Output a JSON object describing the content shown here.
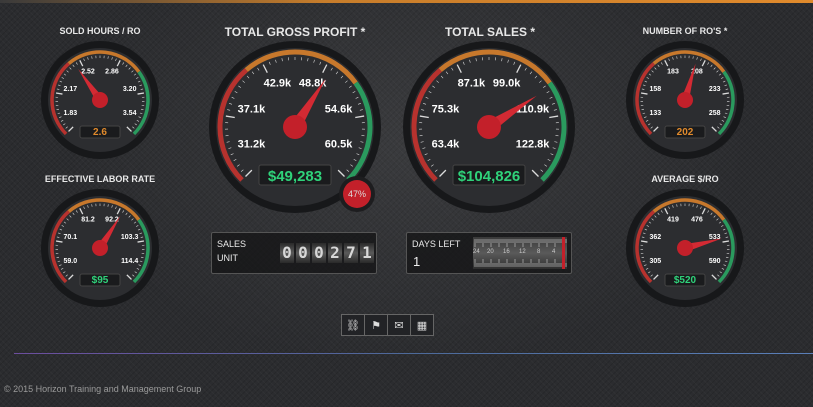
{
  "gauges": [
    {
      "id": "sold-hours",
      "title": "SOLD HOURS / RO",
      "ticks": [
        "1.83",
        "2.17",
        "2.52",
        "2.86",
        "3.20",
        "3.54"
      ],
      "value": "2.6",
      "value_color": "#e08a2c",
      "needle_frac": 0.37
    },
    {
      "id": "gross-profit",
      "title": "TOTAL GROSS PROFIT *",
      "ticks": [
        "31.2k",
        "37.1k",
        "42.9k",
        "48.8k",
        "54.6k",
        "60.5k"
      ],
      "value": "$49,283",
      "value_color": "#2fd27a",
      "needle_frac": 0.62
    },
    {
      "id": "total-sales",
      "title": "TOTAL SALES *",
      "ticks": [
        "63.4k",
        "75.3k",
        "87.1k",
        "99.0k",
        "110.9k",
        "122.8k"
      ],
      "value": "$104,826",
      "value_color": "#2fd27a",
      "needle_frac": 0.71
    },
    {
      "id": "number-ros",
      "title": "NUMBER OF RO'S *",
      "ticks": [
        "133",
        "158",
        "183",
        "208",
        "233",
        "258"
      ],
      "value": "202",
      "value_color": "#e08a2c",
      "needle_frac": 0.56
    },
    {
      "id": "labor-rate",
      "title": "EFFECTIVE LABOR RATE",
      "ticks": [
        "59.0",
        "70.1",
        "81.2",
        "92.2",
        "103.3",
        "114.4"
      ],
      "value": "$95",
      "value_color": "#2fd27a",
      "needle_frac": 0.62
    },
    {
      "id": "average-ro",
      "title": "AVERAGE $/RO",
      "ticks": [
        "305",
        "362",
        "419",
        "476",
        "533",
        "590"
      ],
      "value": "$520",
      "value_color": "#2fd27a",
      "needle_frac": 0.78
    }
  ],
  "gross_profit_badge": "47%",
  "sales_unit": {
    "label_line1": "SALES",
    "label_line2": "UNIT",
    "digits": [
      "0",
      "0",
      "0",
      "2",
      "7",
      "1"
    ]
  },
  "days_left": {
    "label": "DAYS LEFT",
    "value": "1",
    "scale": [
      "24",
      "20",
      "16",
      "12",
      "8",
      "4"
    ]
  },
  "toolbar": {
    "icons": [
      "binoculars-icon",
      "flag-icon",
      "envelope-icon",
      "grid-icon"
    ],
    "glyphs": [
      "⛓",
      "⚑",
      "✉",
      "▦"
    ]
  },
  "footer": "© 2015 Horizon Training and Management Group"
}
